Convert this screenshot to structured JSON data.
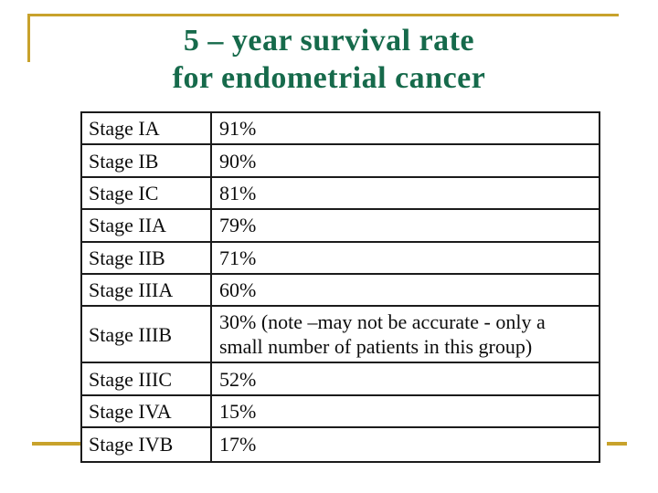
{
  "title": {
    "line1": "5 – year survival rate",
    "line2": "for endometrial cancer"
  },
  "colors": {
    "accent_gold": "#C8A22C",
    "title_green": "#166A4B",
    "table_border": "#1B1B1B"
  },
  "table": {
    "columns": [
      "stage",
      "rate"
    ],
    "rows": [
      {
        "stage": "Stage IA",
        "rate": "91%"
      },
      {
        "stage": "Stage IB",
        "rate": "90%"
      },
      {
        "stage": "Stage IC",
        "rate": "81%"
      },
      {
        "stage": "Stage IIA",
        "rate": "79%"
      },
      {
        "stage": "Stage IIB",
        "rate": "71%"
      },
      {
        "stage": "Stage IIIA",
        "rate": "60%"
      },
      {
        "stage": "Stage IIIB",
        "rate": "30% (note –may not be accurate - only a small number of patients in this group)"
      },
      {
        "stage": "Stage IIIC",
        "rate": "52%"
      },
      {
        "stage": "Stage IVA",
        "rate": "15%"
      },
      {
        "stage": "Stage IVB",
        "rate": "17%"
      }
    ]
  }
}
